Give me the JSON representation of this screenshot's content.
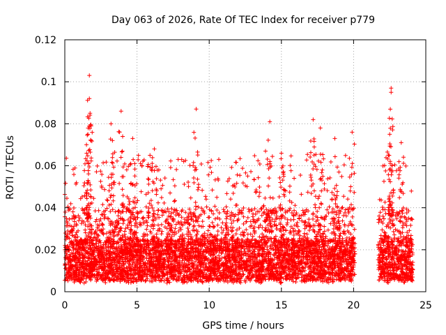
{
  "chart_data": {
    "type": "scatter",
    "title": "Day 063 of 2026, Rate Of TEC Index for receiver p779",
    "xlabel": "GPS time / hours",
    "ylabel": "ROTI / TECUs",
    "xlim": [
      0,
      25
    ],
    "ylim": [
      0,
      0.12
    ],
    "xticks": [
      0,
      5,
      10,
      15,
      20,
      25
    ],
    "xtick_labels": [
      "0",
      "5",
      "10",
      "15",
      "20",
      "25"
    ],
    "yticks": [
      0,
      0.02,
      0.04,
      0.06,
      0.08,
      0.1,
      0.12
    ],
    "ytick_labels": [
      "0",
      "0.02",
      "0.04",
      "0.06",
      "0.08",
      "0.1",
      "0.12"
    ],
    "grid": true,
    "marker": "+",
    "series": [
      {
        "name": "ROTI",
        "color": "#ff0000",
        "segments": [
          [
            0.0,
            4.1
          ],
          [
            4.1,
            20.1
          ],
          [
            21.7,
            24.1
          ]
        ],
        "dense_band": [
          0.005,
          0.025
        ],
        "peaks": [
          {
            "x": 1.7,
            "y": 0.103
          },
          {
            "x": 1.7,
            "y": 0.092
          },
          {
            "x": 1.75,
            "y": 0.085
          },
          {
            "x": 1.6,
            "y": 0.075
          },
          {
            "x": 1.5,
            "y": 0.07
          },
          {
            "x": 3.2,
            "y": 0.08
          },
          {
            "x": 3.3,
            "y": 0.072
          },
          {
            "x": 3.9,
            "y": 0.086
          },
          {
            "x": 4.7,
            "y": 0.073
          },
          {
            "x": 6.2,
            "y": 0.068
          },
          {
            "x": 5.9,
            "y": 0.065
          },
          {
            "x": 9.1,
            "y": 0.087
          },
          {
            "x": 14.2,
            "y": 0.081
          },
          {
            "x": 13.9,
            "y": 0.067
          },
          {
            "x": 15.0,
            "y": 0.066
          },
          {
            "x": 17.2,
            "y": 0.082
          },
          {
            "x": 17.7,
            "y": 0.078
          },
          {
            "x": 18.7,
            "y": 0.073
          },
          {
            "x": 19.9,
            "y": 0.076
          },
          {
            "x": 22.6,
            "y": 0.097
          },
          {
            "x": 22.6,
            "y": 0.095
          },
          {
            "x": 22.5,
            "y": 0.075
          },
          {
            "x": 23.3,
            "y": 0.071
          }
        ]
      }
    ]
  }
}
